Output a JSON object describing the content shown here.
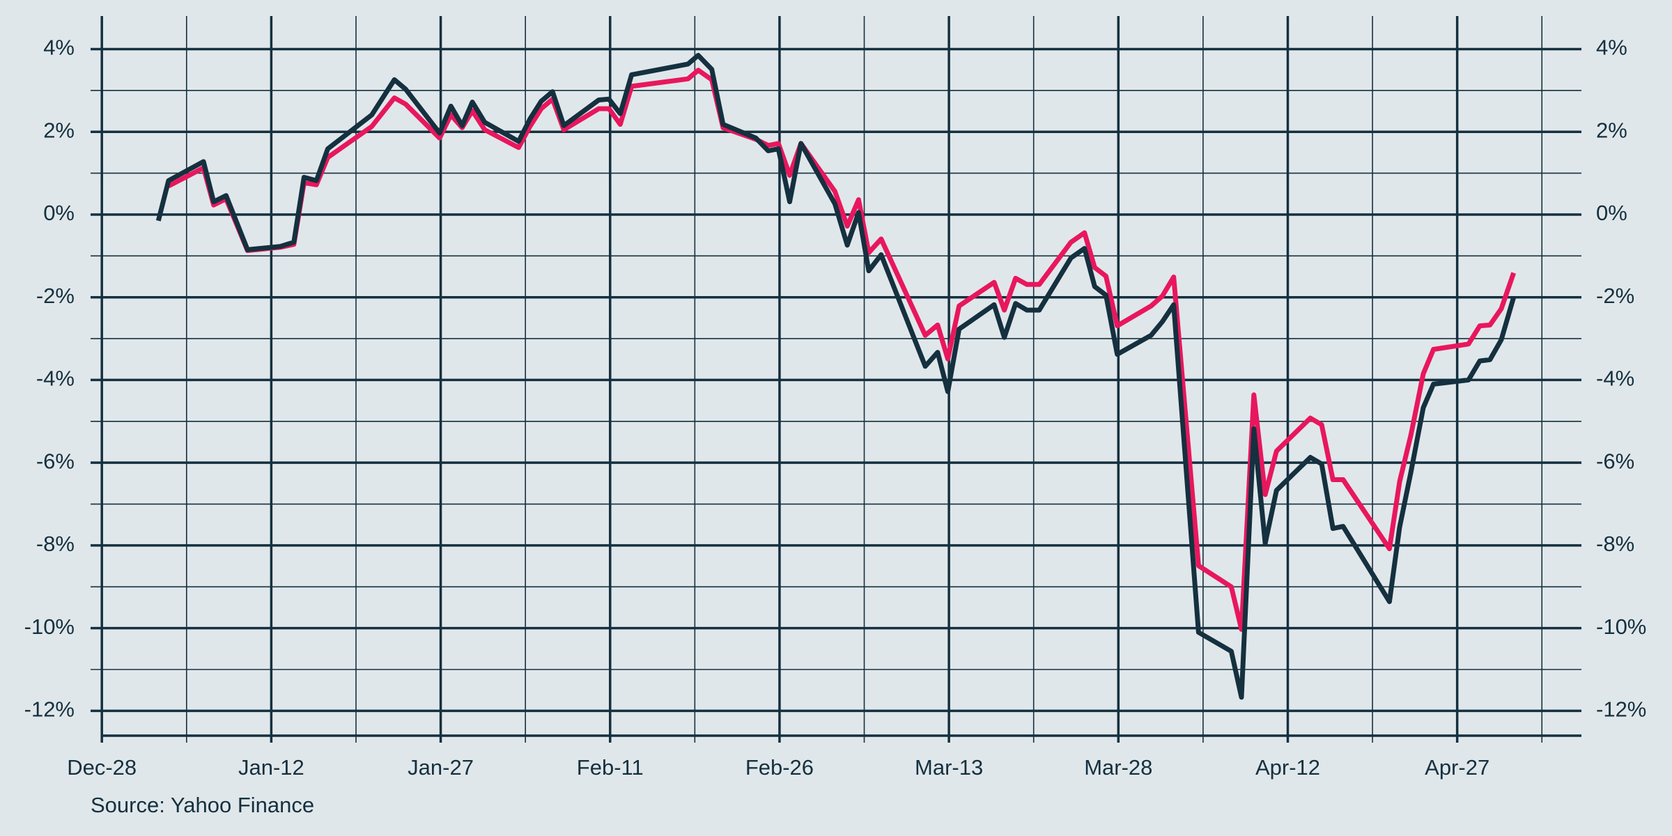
{
  "chart_data": {
    "type": "line",
    "source": "Source: Yahoo Finance",
    "x": [
      5.0,
      5.9,
      9.0,
      9.9,
      11.0,
      12.9,
      15.8,
      17.0,
      17.9,
      19.0,
      20.0,
      23.9,
      25.9,
      26.9,
      29.9,
      30.9,
      31.9,
      32.8,
      33.9,
      36.9,
      37.9,
      38.9,
      39.9,
      40.9,
      44.0,
      44.9,
      45.9,
      46.9,
      51.9,
      52.8,
      54.0,
      55.0,
      57.9,
      59.0,
      59.9,
      60.9,
      61.9,
      64.9,
      66.0,
      67.0,
      67.9,
      69.0,
      72.9,
      74.0,
      74.9,
      75.9,
      79.0,
      79.9,
      80.9,
      81.9,
      83.0,
      85.8,
      87.0,
      87.9,
      88.9,
      89.9,
      92.9,
      93.9,
      94.9,
      97.1,
      100.0,
      100.9,
      102.0,
      103.0,
      104.0,
      107.0,
      108.0,
      109.0,
      109.9,
      114.0,
      114.9,
      115.9,
      117.0,
      117.9,
      121.0,
      122.0,
      122.9,
      123.9,
      125.0
    ],
    "series": [
      {
        "color": "#e8175d",
        "values": [
          null,
          0.69,
          1.13,
          0.23,
          0.38,
          -0.87,
          -0.79,
          -0.72,
          0.77,
          0.72,
          1.38,
          2.13,
          2.82,
          2.67,
          1.85,
          2.41,
          2.1,
          2.51,
          2.05,
          1.62,
          2.13,
          2.56,
          2.79,
          2.05,
          2.56,
          2.56,
          2.18,
          3.1,
          3.28,
          3.49,
          3.26,
          2.1,
          1.82,
          1.67,
          1.72,
          0.95,
          1.72,
          0.56,
          -0.28,
          0.36,
          -0.92,
          -0.59,
          -2.92,
          -2.67,
          -3.49,
          -2.21,
          -1.64,
          -2.31,
          -1.54,
          -1.69,
          -1.69,
          -0.67,
          -0.44,
          -1.28,
          -1.49,
          -2.69,
          -2.21,
          -1.97,
          -1.51,
          -8.49,
          -9.0,
          -10.03,
          -4.36,
          -6.77,
          -5.72,
          -4.92,
          -5.08,
          -6.41,
          -6.41,
          -8.08,
          -6.46,
          -5.33,
          -3.85,
          -3.26,
          -3.13,
          -2.69,
          -2.67,
          -2.28,
          -1.41
        ]
      },
      {
        "color": "#15303f",
        "values": [
          -0.15,
          0.82,
          1.28,
          0.31,
          0.46,
          -0.85,
          -0.77,
          -0.67,
          0.9,
          0.82,
          1.59,
          2.41,
          3.26,
          3.03,
          1.97,
          2.62,
          2.15,
          2.72,
          2.23,
          1.77,
          2.31,
          2.74,
          2.97,
          2.15,
          2.77,
          2.79,
          2.44,
          3.38,
          3.64,
          3.85,
          3.51,
          2.18,
          1.85,
          1.54,
          1.59,
          0.31,
          1.72,
          0.26,
          -0.74,
          0.05,
          -1.36,
          -0.97,
          -3.67,
          -3.33,
          -4.28,
          -2.77,
          -2.18,
          -2.97,
          -2.15,
          -2.31,
          -2.31,
          -1.05,
          -0.82,
          -1.74,
          -1.95,
          -3.38,
          -2.92,
          -2.59,
          -2.18,
          -10.1,
          -10.56,
          -11.67,
          -5.18,
          -7.95,
          -6.67,
          -5.87,
          -6.03,
          -7.59,
          -7.54,
          -9.36,
          -7.56,
          -6.23,
          -4.67,
          -4.1,
          -4.0,
          -3.54,
          -3.51,
          -3.03,
          -2.0
        ]
      }
    ],
    "xlim": [
      -1,
      131
    ],
    "xticks": [
      {
        "value": 0,
        "label": "Dec-28"
      },
      {
        "value": 15,
        "label": "Jan-12"
      },
      {
        "value": 30,
        "label": "Jan-27"
      },
      {
        "value": 45,
        "label": "Feb-11"
      },
      {
        "value": 60,
        "label": "Feb-26"
      },
      {
        "value": 75,
        "label": "Mar-13"
      },
      {
        "value": 90,
        "label": "Mar-28"
      },
      {
        "value": 105,
        "label": "Apr-12"
      },
      {
        "value": 120,
        "label": "Apr-27"
      }
    ],
    "ylim": [
      -12.6,
      4.8
    ],
    "yticks": [
      {
        "value": -12,
        "label": "-12%"
      },
      {
        "value": -10,
        "label": "-10%"
      },
      {
        "value": -8,
        "label": "-8%"
      },
      {
        "value": -6,
        "label": "-6%"
      },
      {
        "value": -4,
        "label": "-4%"
      },
      {
        "value": -2,
        "label": "-2%"
      },
      {
        "value": 0,
        "label": "0%"
      },
      {
        "value": 2,
        "label": "2%"
      },
      {
        "value": 4,
        "label": "4%"
      }
    ],
    "grid": true
  }
}
